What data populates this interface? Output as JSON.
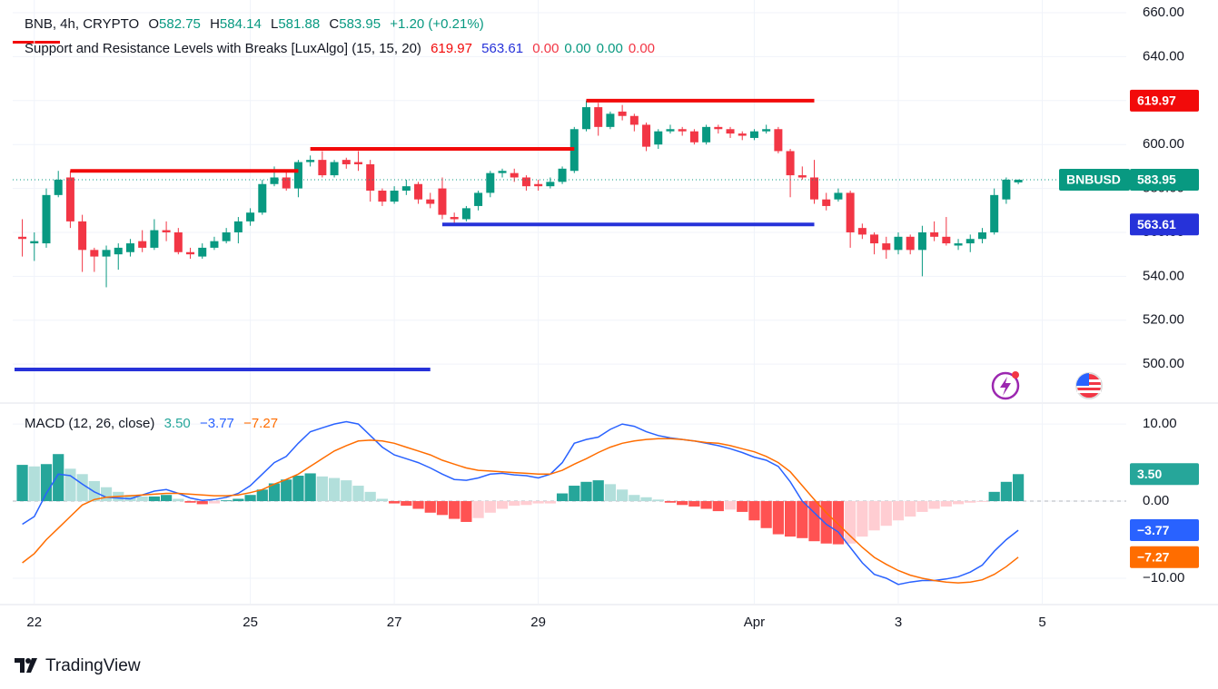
{
  "header": {
    "symbol": "BNB, 4h, CRYPTO",
    "o": "O",
    "h": "H",
    "l": "L",
    "c": "C",
    "change": "+1.20 (+0.21%)",
    "value_color": "#089981"
  },
  "indicator": {
    "name": "Support and Resistance Levels with Breaks [LuxAlgo] (15, 15, 20)",
    "extra_values": [
      "0.00",
      "0.00",
      "0.00",
      "0.00"
    ],
    "extra_value_colors": [
      "#f23645",
      "#089981",
      "#089981",
      "#f23645"
    ]
  },
  "chart_data": [
    {
      "type": "candlestick",
      "symbol": "BNBUSD",
      "up_color": "#089981",
      "down_color": "#f23645",
      "open": [
        558,
        555,
        555,
        577,
        585,
        565,
        552,
        549,
        550,
        551,
        556,
        553,
        561,
        560,
        551,
        549,
        553,
        556,
        560,
        565,
        569,
        582,
        585,
        580,
        592,
        593,
        586,
        593,
        592,
        591,
        579,
        574,
        579,
        582,
        575,
        580,
        567,
        566,
        572,
        578,
        587,
        587,
        585,
        582,
        581,
        583,
        588,
        607,
        617,
        608,
        615,
        613,
        609,
        600,
        606,
        607,
        606,
        601,
        608,
        607,
        605,
        603,
        606,
        607,
        597,
        586,
        585,
        575,
        575,
        578,
        562,
        559,
        555,
        552,
        558,
        552,
        560,
        558,
        554,
        555,
        557,
        560,
        575,
        582.75
      ],
      "high": [
        566,
        560,
        580,
        588,
        588,
        568,
        553,
        554,
        555,
        557,
        561,
        566,
        565,
        562,
        553,
        555,
        558,
        562,
        567,
        571,
        584,
        590,
        588,
        593,
        595,
        597,
        593,
        594,
        597,
        593,
        580,
        581,
        584,
        583,
        578,
        585,
        569,
        572,
        579,
        588,
        589,
        589,
        586,
        584,
        585,
        590,
        608,
        620,
        619,
        615,
        618,
        614,
        610,
        607,
        609,
        608,
        607,
        609,
        609,
        608,
        606,
        607,
        609,
        608,
        598,
        590,
        593,
        578,
        580,
        579,
        564,
        560,
        558,
        560,
        559,
        563,
        565,
        567,
        557,
        559,
        562,
        580,
        585,
        584.14
      ],
      "low": [
        549,
        547,
        553,
        576,
        562,
        542,
        542,
        535,
        543,
        549,
        551,
        552,
        556,
        550,
        548,
        548,
        552,
        555,
        555,
        563,
        568,
        581,
        579,
        576,
        590,
        585,
        585,
        589,
        588,
        574,
        572,
        573,
        577,
        573,
        571,
        566,
        564,
        565,
        570,
        576,
        585,
        583,
        579,
        579,
        580,
        582,
        587,
        606,
        604,
        607,
        611,
        606,
        597,
        598,
        605,
        604,
        600,
        600,
        605,
        603,
        602,
        602,
        605,
        596,
        576,
        584,
        573,
        570,
        574,
        553,
        557,
        550,
        548,
        550,
        550,
        540,
        556,
        554,
        552,
        551,
        555,
        559,
        573,
        581.88
      ],
      "close": [
        557,
        556,
        577,
        584,
        565,
        552,
        549,
        552,
        553,
        555,
        553,
        561,
        560,
        551,
        550,
        553,
        556,
        560,
        565,
        569,
        582,
        585,
        580,
        592,
        593,
        586,
        592,
        591,
        591,
        579,
        574,
        579,
        581,
        575,
        573,
        568,
        566,
        571,
        578,
        587,
        588,
        585,
        581,
        581,
        583,
        589,
        607,
        617,
        608,
        614,
        613,
        609,
        599,
        606,
        607,
        606,
        601,
        608,
        607,
        605,
        604,
        606,
        607,
        597,
        586,
        585,
        575,
        572,
        578,
        560,
        559,
        555,
        552,
        558,
        552,
        560,
        558,
        555,
        555,
        557,
        560,
        577,
        584,
        583.95
      ],
      "resistance_color": "#f20a0a",
      "support_color": "#2632d9",
      "resistance": [
        {
          "start": 4,
          "end": 23,
          "value": 588
        },
        {
          "start": 24,
          "end": 46,
          "value": 598
        },
        {
          "start": 47,
          "end": 66,
          "value": 619.97
        }
      ],
      "support": [
        {
          "start": -0.8,
          "end": 34,
          "value": 497.6
        },
        {
          "start": 35,
          "end": 66,
          "value": 563.61
        }
      ],
      "xlim": [
        -0.8,
        92
      ],
      "ylim": [
        482.7,
        665.8
      ],
      "yticks": [
        {
          "value": 500,
          "label": "500.00"
        },
        {
          "value": 520,
          "label": "520.00"
        },
        {
          "value": 540,
          "label": "540.00"
        },
        {
          "value": 560,
          "label": "560.00"
        },
        {
          "value": 580,
          "label": "580.00"
        },
        {
          "value": 600,
          "label": "600.00"
        },
        {
          "value": 620,
          "label": "620.00"
        },
        {
          "value": 640,
          "label": "640.00"
        },
        {
          "value": 660,
          "label": "660.00"
        }
      ],
      "xticks": [
        {
          "value": 1,
          "label": "22"
        },
        {
          "value": 19,
          "label": "25"
        },
        {
          "value": 31,
          "label": "27"
        },
        {
          "value": 43,
          "label": "29"
        },
        {
          "value": 61,
          "label": "Apr"
        },
        {
          "value": 73,
          "label": "3"
        },
        {
          "value": 85,
          "label": "5"
        }
      ],
      "grid": true
    },
    {
      "type": "macd",
      "title": "MACD (12, 26, close)",
      "histogram": {
        "values": [
          4.7,
          4.5,
          4.8,
          6.1,
          4.2,
          3.5,
          2.6,
          1.8,
          1.2,
          0.8,
          0.6,
          0.6,
          0.8,
          0.3,
          -0.2,
          -0.4,
          -0.3,
          0.1,
          0.3,
          0.8,
          1.5,
          2.3,
          2.8,
          3.3,
          3.6,
          3.2,
          3.0,
          2.7,
          2.0,
          1.2,
          0.3,
          -0.3,
          -0.6,
          -1.0,
          -1.5,
          -1.8,
          -2.3,
          -2.7,
          -2.2,
          -1.5,
          -1.0,
          -0.6,
          -0.5,
          -0.3,
          -0.3,
          1.0,
          2.0,
          2.5,
          2.7,
          2.2,
          1.5,
          0.8,
          0.5,
          0.2,
          -0.2,
          -0.5,
          -0.7,
          -1.0,
          -1.3,
          -1.1,
          -1.4,
          -2.5,
          -3.5,
          -4.3,
          -4.6,
          -4.8,
          -5.2,
          -5.5,
          -5.6,
          -5.5,
          -4.6,
          -3.8,
          -3.2,
          -2.5,
          -2.0,
          -1.4,
          -1.0,
          -0.7,
          -0.4,
          -0.2,
          -0.1,
          1.2,
          2.5,
          3.5
        ],
        "colors": [
          "#26a69a",
          "#b2dfdb",
          "#ff5252",
          "#ffcdd2"
        ],
        "last_value_label": "3.50"
      },
      "series": [
        {
          "color": "#2962ff",
          "last_value_label": "−3.77",
          "values": [
            -3,
            -2,
            1,
            3.5,
            3.3,
            2.2,
            1.2,
            0.5,
            0.4,
            0.3,
            0.8,
            1.3,
            1.5,
            1.0,
            0.4,
            0.1,
            0.2,
            0.5,
            1.0,
            2.0,
            3.5,
            5.0,
            5.8,
            7.5,
            9.0,
            9.5,
            10.0,
            10.3,
            10.0,
            8.5,
            7.0,
            6.0,
            5.5,
            5.0,
            4.3,
            3.5,
            2.8,
            2.7,
            3.0,
            3.5,
            3.6,
            3.4,
            3.3,
            3.0,
            3.5,
            5.0,
            7.5,
            8.0,
            8.3,
            9.3,
            10.0,
            9.7,
            9.0,
            8.5,
            8.2,
            8.0,
            7.8,
            7.5,
            7.2,
            6.8,
            6.3,
            5.7,
            5.3,
            4.5,
            2.5,
            0.0,
            -1.5,
            -3.0,
            -4.0,
            -6,
            -8,
            -9.5,
            -10,
            -10.8,
            -10.5,
            -10.3,
            -10.3,
            -10.1,
            -9.8,
            -9.2,
            -8.3,
            -6.5,
            -5,
            -3.77
          ]
        },
        {
          "color": "#ff6d00",
          "last_value_label": "−7.27",
          "values": [
            -8,
            -6.8,
            -5.0,
            -3.5,
            -2.0,
            -0.5,
            0.2,
            0.5,
            0.6,
            0.7,
            0.8,
            0.9,
            1.0,
            1.0,
            0.9,
            0.8,
            0.7,
            0.7,
            0.8,
            1.1,
            1.5,
            2.2,
            2.8,
            3.5,
            4.5,
            5.5,
            6.5,
            7.2,
            7.8,
            7.9,
            7.8,
            7.5,
            7.0,
            6.5,
            6.0,
            5.3,
            4.8,
            4.3,
            4.0,
            3.9,
            3.8,
            3.7,
            3.6,
            3.5,
            3.5,
            4.0,
            4.8,
            5.5,
            6.3,
            7.0,
            7.5,
            7.8,
            8.0,
            8.1,
            8.1,
            8.0,
            7.8,
            7.6,
            7.5,
            7.2,
            6.8,
            6.4,
            5.8,
            5.0,
            3.8,
            2.0,
            0.2,
            -1.5,
            -3,
            -4.5,
            -6,
            -7.3,
            -8.2,
            -9,
            -9.6,
            -10,
            -10.3,
            -10.5,
            -10.6,
            -10.5,
            -10.2,
            -9.5,
            -8.5,
            -7.27
          ]
        }
      ],
      "ylim": [
        -13.3,
        12.6
      ],
      "yticks": [
        {
          "value": 10,
          "label": "10.00"
        },
        {
          "value": 0,
          "label": "0.00"
        },
        {
          "value": -10,
          "label": "−10.00"
        }
      ],
      "grid": true
    }
  ],
  "footer": {
    "brand": "TradingView"
  }
}
